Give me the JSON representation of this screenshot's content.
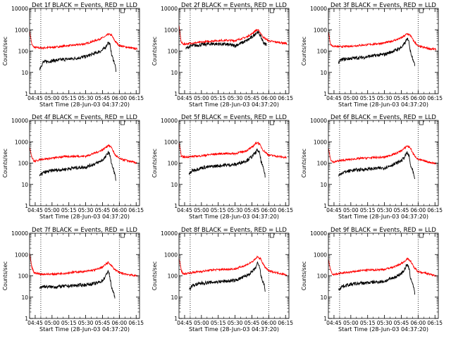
{
  "chart_data": {
    "type": "line",
    "y_scale": "log",
    "ylim": [
      1,
      10000
    ],
    "y_ticks": [
      "1",
      "10",
      "100",
      "1000",
      "10000"
    ],
    "x_ticks": [
      "04:45",
      "05:00",
      "05:15",
      "05:30",
      "05:45",
      "06:00",
      "06:15"
    ],
    "xlim": [
      "04:40",
      "06:18"
    ],
    "xlabel": "Start Time (28-Jun-03 04:37:20)",
    "ylabel": "Counts/sec",
    "grid": false,
    "marker_times": [
      "04:50",
      "06:00"
    ],
    "colors": {
      "events": "#000000",
      "lld": "#ff0000",
      "axes": "#000000"
    },
    "panels": [
      {
        "title": "Det 1f BLACK = Events, RED = LLD",
        "series": [
          {
            "key": "lld",
            "x": [
              "04:40",
              "04:42",
              "04:44",
              "04:50",
              "05:00",
              "05:10",
              "05:20",
              "05:30",
              "05:40",
              "05:45",
              "05:48",
              "05:50",
              "05:53",
              "05:56",
              "06:00",
              "06:10",
              "06:16"
            ],
            "values": [
              900,
              200,
              150,
              140,
              150,
              170,
              190,
              220,
              330,
              420,
              500,
              620,
              560,
              300,
              180,
              140,
              125
            ]
          },
          {
            "key": "events",
            "x": [
              "04:49",
              "04:52",
              "05:00",
              "05:10",
              "05:20",
              "05:30",
              "05:40",
              "05:45",
              "05:48",
              "05:50",
              "05:52",
              "05:53",
              "05:55",
              "05:56",
              "05:57"
            ],
            "values": [
              15,
              30,
              35,
              40,
              45,
              55,
              85,
              110,
              160,
              260,
              180,
              70,
              35,
              25,
              12
            ]
          }
        ]
      },
      {
        "title": "Det 2f BLACK = Events, RED = LLD",
        "series": [
          {
            "key": "lld",
            "x": [
              "04:40",
              "04:42",
              "04:44",
              "04:50",
              "05:00",
              "05:10",
              "05:20",
              "05:30",
              "05:40",
              "05:45",
              "05:48",
              "05:50",
              "05:52",
              "05:55",
              "06:00",
              "06:10",
              "06:16"
            ],
            "values": [
              1500,
              250,
              210,
              230,
              260,
              300,
              320,
              310,
              450,
              650,
              900,
              1000,
              800,
              450,
              300,
              250,
              230
            ]
          },
          {
            "key": "events",
            "x": [
              "04:46",
              "04:50",
              "05:00",
              "05:10",
              "05:20",
              "05:30",
              "05:40",
              "05:45",
              "05:48",
              "05:50",
              "05:52",
              "05:54",
              "05:56",
              "05:58"
            ],
            "values": [
              130,
              170,
              200,
              220,
              210,
              180,
              300,
              450,
              650,
              800,
              600,
              350,
              220,
              210
            ]
          }
        ]
      },
      {
        "title": "Det 3f BLACK = Events, RED = LLD",
        "series": [
          {
            "key": "lld",
            "x": [
              "04:40",
              "04:42",
              "04:44",
              "04:50",
              "05:00",
              "05:10",
              "05:20",
              "05:30",
              "05:40",
              "05:45",
              "05:48",
              "05:50",
              "05:53",
              "05:56",
              "06:00",
              "06:10",
              "06:16"
            ],
            "values": [
              800,
              200,
              170,
              160,
              170,
              190,
              210,
              240,
              330,
              420,
              520,
              650,
              560,
              300,
              170,
              130,
              120
            ]
          },
          {
            "key": "events",
            "x": [
              "04:49",
              "04:52",
              "05:00",
              "05:10",
              "05:20",
              "05:30",
              "05:40",
              "05:45",
              "05:48",
              "05:50",
              "05:52",
              "05:53",
              "05:55",
              "05:56",
              "05:57"
            ],
            "values": [
              30,
              40,
              45,
              50,
              60,
              70,
              110,
              150,
              220,
              380,
              260,
              100,
              50,
              35,
              20
            ]
          }
        ]
      },
      {
        "title": "Det 4f BLACK = Events, RED = LLD",
        "series": [
          {
            "key": "lld",
            "x": [
              "04:40",
              "04:42",
              "04:44",
              "04:50",
              "05:00",
              "05:10",
              "05:20",
              "05:30",
              "05:40",
              "05:45",
              "05:48",
              "05:50",
              "05:53",
              "05:56",
              "06:00",
              "06:10",
              "06:16"
            ],
            "values": [
              600,
              190,
              120,
              150,
              170,
              200,
              210,
              210,
              320,
              420,
              550,
              700,
              550,
              250,
              160,
              120,
              100
            ]
          },
          {
            "key": "events",
            "x": [
              "04:49",
              "04:52",
              "05:00",
              "05:10",
              "05:20",
              "05:30",
              "05:40",
              "05:45",
              "05:48",
              "05:50",
              "05:52",
              "05:53",
              "05:55",
              "05:56",
              "05:57"
            ],
            "values": [
              25,
              35,
              45,
              50,
              60,
              65,
              100,
              140,
              200,
              330,
              220,
              90,
              45,
              30,
              15
            ]
          }
        ]
      },
      {
        "title": "Det 5f BLACK = Events, RED = LLD",
        "series": [
          {
            "key": "lld",
            "x": [
              "04:40",
              "04:42",
              "04:44",
              "04:50",
              "05:00",
              "05:10",
              "05:20",
              "05:30",
              "05:40",
              "05:45",
              "05:48",
              "05:50",
              "05:52",
              "05:55",
              "06:00",
              "06:10",
              "06:16"
            ],
            "values": [
              900,
              220,
              190,
              200,
              220,
              260,
              280,
              280,
              380,
              550,
              800,
              950,
              750,
              400,
              240,
              200,
              180
            ]
          },
          {
            "key": "events",
            "x": [
              "04:49",
              "04:52",
              "05:00",
              "05:10",
              "05:20",
              "05:30",
              "05:40",
              "05:45",
              "05:48",
              "05:50",
              "05:52",
              "05:53",
              "05:55",
              "05:56",
              "05:57"
            ],
            "values": [
              30,
              45,
              60,
              70,
              80,
              85,
              130,
              200,
              300,
              420,
              280,
              130,
              60,
              40,
              22
            ]
          }
        ]
      },
      {
        "title": "Det 6f BLACK = Events, RED = LLD",
        "series": [
          {
            "key": "lld",
            "x": [
              "04:40",
              "04:42",
              "04:44",
              "04:50",
              "05:00",
              "05:10",
              "05:20",
              "05:30",
              "05:40",
              "05:45",
              "05:48",
              "05:50",
              "05:53",
              "05:56",
              "06:00",
              "06:10",
              "06:16"
            ],
            "values": [
              500,
              150,
              110,
              130,
              150,
              170,
              180,
              190,
              280,
              380,
              500,
              650,
              520,
              250,
              150,
              110,
              95
            ]
          },
          {
            "key": "events",
            "x": [
              "04:49",
              "04:52",
              "05:00",
              "05:10",
              "05:20",
              "05:30",
              "05:40",
              "05:45",
              "05:48",
              "05:50",
              "05:52",
              "05:53",
              "05:55",
              "05:56",
              "05:57"
            ],
            "values": [
              25,
              35,
              45,
              50,
              55,
              60,
              95,
              130,
              190,
              310,
              210,
              85,
              45,
              30,
              15
            ]
          }
        ]
      },
      {
        "title": "Det 7f BLACK = Events, RED = LLD",
        "series": [
          {
            "key": "lld",
            "x": [
              "04:40",
              "04:42",
              "04:44",
              "04:50",
              "05:00",
              "05:10",
              "05:20",
              "05:30",
              "05:40",
              "05:45",
              "05:48",
              "05:50",
              "05:52",
              "05:55",
              "06:00",
              "06:10",
              "06:16"
            ],
            "values": [
              1100,
              250,
              140,
              120,
              120,
              130,
              150,
              160,
              200,
              260,
              350,
              420,
              350,
              220,
              140,
              110,
              100
            ]
          },
          {
            "key": "events",
            "x": [
              "04:49",
              "04:52",
              "05:00",
              "05:10",
              "05:20",
              "05:30",
              "05:40",
              "05:45",
              "05:48",
              "05:50",
              "05:51",
              "05:52",
              "05:53",
              "05:55",
              "05:56"
            ],
            "values": [
              28,
              32,
              30,
              32,
              35,
              38,
              45,
              60,
              100,
              180,
              120,
              60,
              30,
              15,
              9
            ]
          }
        ]
      },
      {
        "title": "Det 8f BLACK = Events, RED = LLD",
        "series": [
          {
            "key": "lld",
            "x": [
              "04:40",
              "04:42",
              "04:44",
              "04:50",
              "05:00",
              "05:10",
              "05:20",
              "05:30",
              "05:40",
              "05:45",
              "05:48",
              "05:50",
              "05:53",
              "05:56",
              "06:00",
              "06:10",
              "06:16"
            ],
            "values": [
              700,
              180,
              120,
              140,
              160,
              190,
              200,
              210,
              320,
              450,
              600,
              780,
              600,
              280,
              170,
              130,
              110
            ]
          },
          {
            "key": "events",
            "x": [
              "04:49",
              "04:52",
              "05:00",
              "05:10",
              "05:20",
              "05:30",
              "05:40",
              "05:45",
              "05:48",
              "05:50",
              "05:52",
              "05:53",
              "05:55",
              "05:56",
              "05:57"
            ],
            "values": [
              22,
              35,
              45,
              50,
              55,
              60,
              100,
              150,
              220,
              380,
              250,
              100,
              50,
              35,
              18
            ]
          }
        ]
      },
      {
        "title": "Det 9f BLACK = Events, RED = LLD",
        "series": [
          {
            "key": "lld",
            "x": [
              "04:40",
              "04:42",
              "04:44",
              "04:50",
              "05:00",
              "05:10",
              "05:20",
              "05:30",
              "05:40",
              "05:45",
              "05:48",
              "05:50",
              "05:53",
              "05:56",
              "06:00",
              "06:10",
              "06:16"
            ],
            "values": [
              600,
              170,
              110,
              130,
              150,
              180,
              190,
              200,
              280,
              380,
              480,
              650,
              520,
              260,
              160,
              120,
              100
            ]
          },
          {
            "key": "events",
            "x": [
              "04:49",
              "04:52",
              "05:00",
              "05:10",
              "05:20",
              "05:30",
              "05:40",
              "05:45",
              "05:48",
              "05:50",
              "05:52",
              "05:53",
              "05:55",
              "05:56",
              "05:57"
            ],
            "values": [
              22,
              32,
              40,
              45,
              50,
              55,
              90,
              130,
              200,
              330,
              220,
              90,
              45,
              30,
              15
            ]
          }
        ]
      }
    ]
  }
}
